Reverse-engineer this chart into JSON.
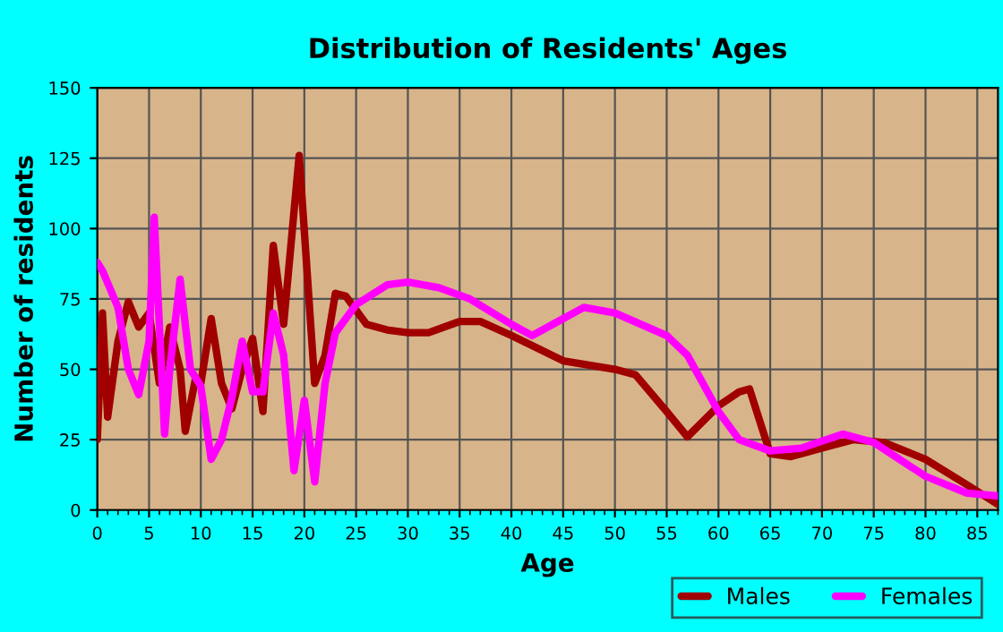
{
  "chart_data": {
    "type": "line",
    "title": "Distribution of Residents' Ages",
    "xlabel": "Age",
    "ylabel": "Number of residents",
    "xlim": [
      0,
      87
    ],
    "ylim": [
      0,
      150
    ],
    "xticks": [
      0,
      5,
      10,
      15,
      20,
      25,
      30,
      35,
      40,
      45,
      50,
      55,
      60,
      65,
      70,
      75,
      80,
      85
    ],
    "yticks": [
      0,
      25,
      50,
      75,
      100,
      125,
      150
    ],
    "grid": true,
    "legend": "bottom right",
    "marker": "none",
    "line_style": "solid",
    "series": [
      {
        "name": "Males",
        "color": "#a00000",
        "x": [
          0,
          0.5,
          1,
          2,
          3,
          4,
          5,
          6,
          7,
          8,
          8.5,
          9.5,
          10,
          11,
          12,
          13,
          14,
          15,
          16,
          17,
          18,
          19.5,
          21,
          22,
          23,
          24,
          26,
          28,
          30,
          32,
          35,
          37,
          40,
          45,
          50,
          52,
          55,
          57,
          60,
          62,
          63,
          65,
          67,
          70,
          73,
          76,
          80,
          84,
          87
        ],
        "values": [
          25,
          70,
          33,
          60,
          74,
          65,
          70,
          45,
          65,
          50,
          28,
          47,
          45,
          68,
          45,
          36,
          50,
          61,
          35,
          94,
          66,
          126,
          45,
          55,
          77,
          76,
          66,
          64,
          63,
          63,
          67,
          67,
          62,
          53,
          50,
          48,
          35,
          26,
          37,
          42,
          43,
          20,
          19,
          22,
          25,
          24,
          18,
          9,
          2
        ]
      },
      {
        "name": "Females",
        "color": "#ff00ff",
        "x": [
          0,
          0.5,
          2,
          3,
          4,
          5,
          5.5,
          6.5,
          7,
          8,
          9,
          10,
          11,
          12,
          13,
          14,
          15,
          16,
          17,
          18,
          19,
          20,
          21,
          22,
          23,
          25,
          28,
          30,
          33,
          36,
          40,
          42,
          44,
          47,
          50,
          55,
          57,
          60,
          62,
          65,
          68,
          72,
          75,
          80,
          84,
          87
        ],
        "values": [
          88,
          85,
          72,
          50,
          41,
          60,
          104,
          27,
          50,
          82,
          50,
          44,
          18,
          25,
          40,
          60,
          42,
          42,
          70,
          55,
          14,
          39,
          10,
          45,
          63,
          73,
          80,
          81,
          79,
          75,
          66,
          62,
          66,
          72,
          70,
          62,
          55,
          35,
          25,
          21,
          22,
          27,
          24,
          12,
          6,
          5
        ]
      }
    ]
  }
}
